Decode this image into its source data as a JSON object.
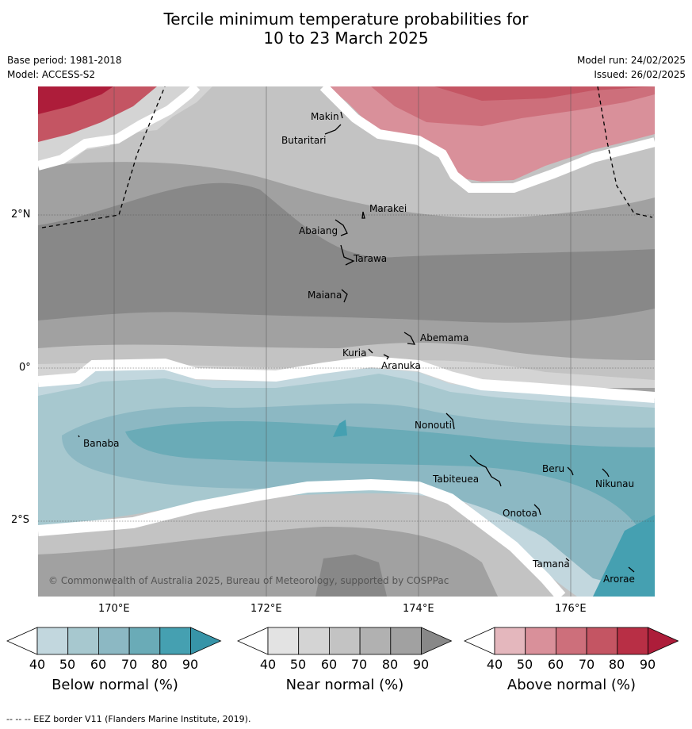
{
  "title": {
    "line1": "Tercile minimum temperature probabilities for",
    "line2": "10 to 23 March 2025"
  },
  "meta": {
    "base_period": "Base period: 1981-2018",
    "model": "Model: ACCESS-S2",
    "model_run": "Model run: 24/02/2025",
    "issued": "Issued: 26/02/2025"
  },
  "map": {
    "copyright": "© Commonwealth of Australia 2025, Bureau of Meteorology, supported by COSPPac",
    "lat_labels": [
      "2°N",
      "0°",
      "2°S"
    ],
    "lon_labels": [
      "170°E",
      "172°E",
      "174°E",
      "176°E"
    ],
    "places": {
      "makin": "Makin",
      "butaritari": "Butaritari",
      "marakei": "Marakei",
      "abaiang": "Abaiang",
      "tarawa": "Tarawa",
      "maiana": "Maiana",
      "abemama": "Abemama",
      "kuria": "Kuria",
      "aranuka": "Aranuka",
      "banaba": "Banaba",
      "nonouti": "Nonouti",
      "beru": "Beru",
      "nikunau": "Nikunau",
      "tabiteuea": "Tabiteuea",
      "onotoa": "Onotoa",
      "tamana": "Tamana",
      "arorae": "Arorae"
    }
  },
  "colorbars": {
    "below": {
      "label": "Below normal (%)",
      "ticks": [
        "40",
        "50",
        "60",
        "70",
        "80",
        "90"
      ],
      "colors": [
        "#c2d7de",
        "#a7c8cf",
        "#8cb8c3",
        "#6aabb7",
        "#45a0b1",
        "#3794a8"
      ]
    },
    "near": {
      "label": "Near normal (%)",
      "ticks": [
        "40",
        "50",
        "60",
        "70",
        "80",
        "90"
      ],
      "colors": [
        "#e3e3e3",
        "#d4d4d4",
        "#c3c3c3",
        "#b1b1b1",
        "#a1a1a1",
        "#888888"
      ]
    },
    "above": {
      "label": "Above normal (%)",
      "ticks": [
        "40",
        "50",
        "60",
        "70",
        "80",
        "90"
      ],
      "colors": [
        "#e4b7bd",
        "#d9909a",
        "#cd6f7b",
        "#c45563",
        "#b82f45",
        "#ad1d3a"
      ]
    }
  },
  "footer": "--  --  -- EEZ border V11 (Flanders Marine Institute, 2019)."
}
